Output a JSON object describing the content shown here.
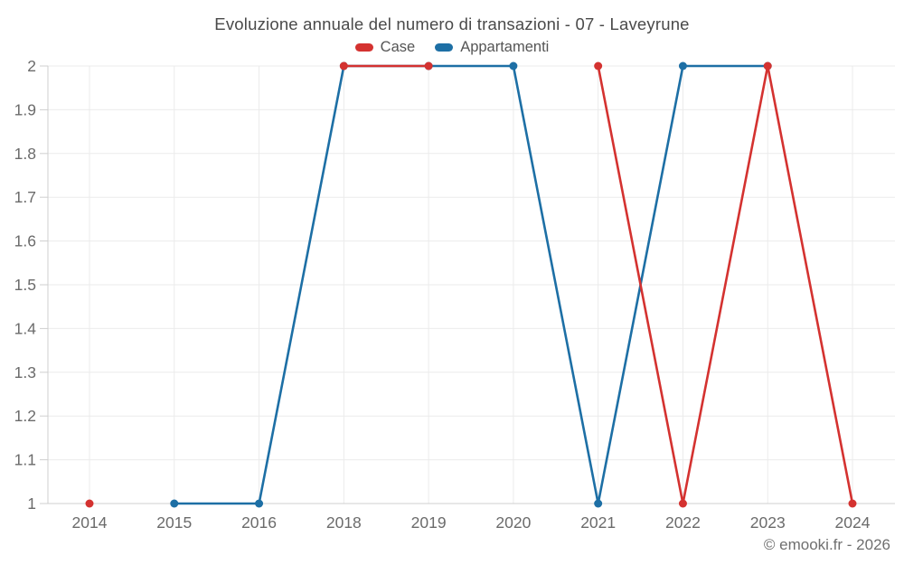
{
  "chart_data": {
    "type": "line",
    "title": "Evoluzione annuale del numero di transazioni - 07 - Laveyrune",
    "xlabel": "",
    "ylabel": "",
    "categories": [
      "2014",
      "2015",
      "2016",
      "2018",
      "2019",
      "2020",
      "2021",
      "2022",
      "2023",
      "2024"
    ],
    "series": [
      {
        "name": "Case",
        "color": "#d43230",
        "values": [
          1,
          null,
          null,
          2,
          2,
          null,
          2,
          1,
          2,
          1
        ]
      },
      {
        "name": "Appartamenti",
        "color": "#1d6fa5",
        "values": [
          null,
          1,
          1,
          2,
          2,
          2,
          1,
          2,
          2,
          null
        ]
      }
    ],
    "ylim": [
      1,
      2
    ],
    "ytick_step": 0.1,
    "ytick_labels": [
      "1",
      "1.1",
      "1.2",
      "1.3",
      "1.4",
      "1.5",
      "1.6",
      "1.7",
      "1.8",
      "1.9",
      "2"
    ],
    "grid": true,
    "legend_position": "top",
    "marker_radius": 4.5,
    "line_width": 2.6
  },
  "footer": {
    "copyright": "© emooki.fr - 2026"
  }
}
